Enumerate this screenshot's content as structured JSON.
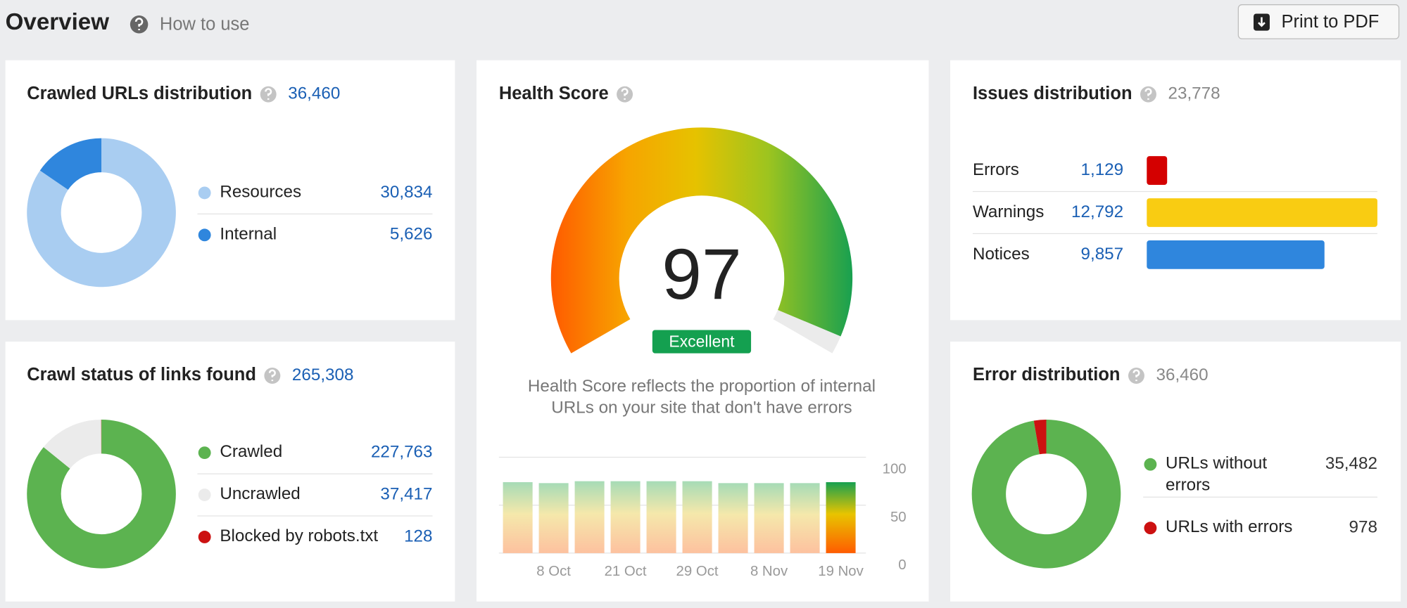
{
  "header": {
    "title": "Overview",
    "help": "How to use",
    "button": "Print to PDF"
  },
  "chart_data": [
    {
      "type": "donut",
      "title": "Crawled URLs distribution",
      "total": {
        "value": 36460,
        "label": "36,460"
      },
      "categories": [
        "Resources",
        "Internal"
      ],
      "values": [
        30834,
        5626
      ],
      "value_labels": [
        "30,834",
        "5,626"
      ],
      "colors": [
        "#a9cdf1",
        "#2f86dd"
      ]
    },
    {
      "type": "donut",
      "title": "Crawl status of links found",
      "total": {
        "value": 265308,
        "label": "265,308"
      },
      "categories": [
        "Crawled",
        "Uncrawled",
        "Blocked by robots.txt"
      ],
      "values": [
        227763,
        37417,
        128
      ],
      "value_labels": [
        "227,763",
        "37,417",
        "128"
      ],
      "colors": [
        "#5cb350",
        "#ebebeb",
        "#cc1111"
      ]
    },
    {
      "type": "gauge",
      "title": "Health Score",
      "value": 97,
      "rating": "Excellent",
      "description": "Health Score reflects the proportion of internal URLs on your site that don't have errors",
      "ylim": [
        0,
        100
      ]
    },
    {
      "type": "bar",
      "categories": [
        null,
        "8 Oct",
        null,
        "21 Oct",
        null,
        "29 Oct",
        null,
        "8 Nov",
        null,
        "19 Nov"
      ],
      "values": [
        74,
        73,
        75,
        75,
        75,
        75,
        73,
        73,
        73,
        74
      ],
      "ylim": [
        0,
        100
      ],
      "yticks": [
        0,
        50,
        100
      ],
      "grid": true
    },
    {
      "type": "hbar",
      "title": "Issues distribution",
      "total": {
        "value": 23778,
        "label": "23,778"
      },
      "categories": [
        "Errors",
        "Warnings",
        "Notices"
      ],
      "values": [
        1129,
        12792,
        9857
      ],
      "value_labels": [
        "1,129",
        "12,792",
        "9,857"
      ],
      "colors": [
        "#d40000",
        "#f9cc12",
        "#2f86dd"
      ]
    },
    {
      "type": "donut",
      "title": "Error distribution",
      "total": {
        "value": 36460,
        "label": "36,460"
      },
      "categories": [
        "URLs without errors",
        "URLs with errors"
      ],
      "values": [
        35482,
        978
      ],
      "value_labels": [
        "35,482",
        "978"
      ],
      "colors": [
        "#5cb350",
        "#cc1111"
      ]
    }
  ]
}
